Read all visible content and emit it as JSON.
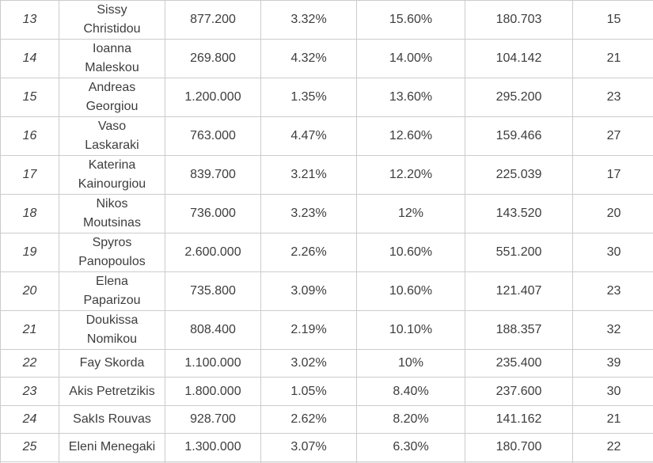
{
  "colors": {
    "text": "#3d3d3d",
    "border": "#cccccc",
    "row_background": "#ffffff",
    "partial_row_background": "#efefef"
  },
  "chart_data": {
    "type": "table",
    "title": "",
    "headers_visible": false,
    "column_count": 7,
    "rows": [
      [
        "13",
        "Sissy\nChristidou",
        "877.200",
        "3.32%",
        "15.60%",
        "180.703",
        "15"
      ],
      [
        "14",
        "Ioanna\nMaleskou",
        "269.800",
        "4.32%",
        "14.00%",
        "104.142",
        "21"
      ],
      [
        "15",
        "Andreas\nGeorgiou",
        "1.200.000",
        "1.35%",
        "13.60%",
        "295.200",
        "23"
      ],
      [
        "16",
        "Vaso\nLaskaraki",
        "763.000",
        "4.47%",
        "12.60%",
        "159.466",
        "27"
      ],
      [
        "17",
        "Katerina\nKainourgiou",
        "839.700",
        "3.21%",
        "12.20%",
        "225.039",
        "17"
      ],
      [
        "18",
        "Nikos\nMoutsinas",
        "736.000",
        "3.23%",
        "12%",
        "143.520",
        "20"
      ],
      [
        "19",
        "Spyros\nPanopoulos",
        "2.600.000",
        "2.26%",
        "10.60%",
        "551.200",
        "30"
      ],
      [
        "20",
        "Elena\nPaparizou",
        "735.800",
        "3.09%",
        "10.60%",
        "121.407",
        "23"
      ],
      [
        "21",
        "Doukissa\nNomikou",
        "808.400",
        "2.19%",
        "10.10%",
        "188.357",
        "32"
      ],
      [
        "22",
        "Fay Skorda",
        "1.100.000",
        "3.02%",
        "10%",
        "235.400",
        "39"
      ],
      [
        "23",
        "Akis Petretzikis",
        "1.800.000",
        "1.05%",
        "8.40%",
        "237.600",
        "30"
      ],
      [
        "24",
        "SakIs Rouvas",
        "928.700",
        "2.62%",
        "8.20%",
        "141.162",
        "21"
      ],
      [
        "25",
        "Eleni Menegaki",
        "1.300.000",
        "3.07%",
        "6.30%",
        "180.700",
        "22"
      ]
    ]
  }
}
